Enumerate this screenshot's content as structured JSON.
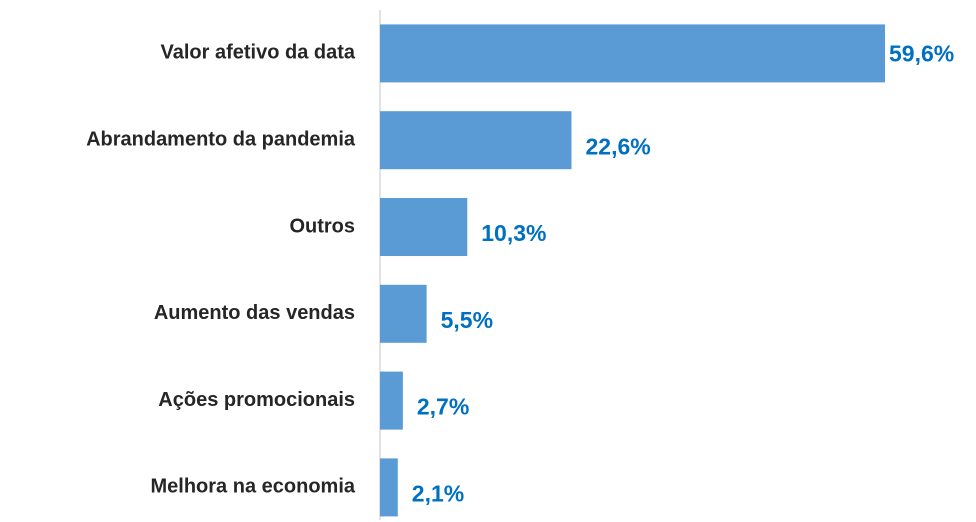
{
  "chart_data": {
    "type": "bar",
    "orientation": "horizontal",
    "categories": [
      "Valor afetivo da data",
      "Abrandamento da pandemia",
      "Outros",
      "Aumento das vendas",
      "Ações promocionais",
      "Melhora na economia"
    ],
    "values": [
      59.6,
      22.6,
      10.3,
      5.5,
      2.7,
      2.1
    ],
    "value_labels": [
      "59,6%",
      "22,6%",
      "10,3%",
      "5,5%",
      "2,7%",
      "2,1%"
    ],
    "color": "#5b9bd5"
  }
}
